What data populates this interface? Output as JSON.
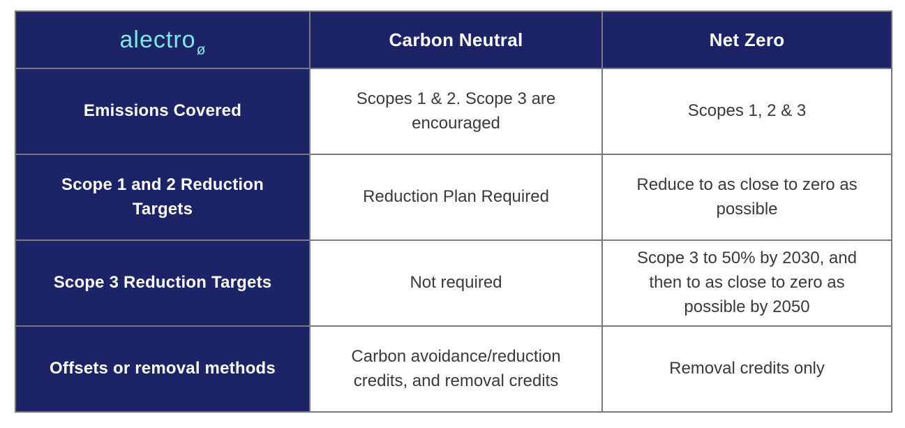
{
  "brand": {
    "name": "alectro",
    "subscript_symbol": "ø",
    "logo_color": "#7ce8e3"
  },
  "theme": {
    "navy": "#1c2366",
    "border_gray": "#7a7a7a",
    "header_text_color": "#ffffff",
    "body_text_color": "#3a3a3a",
    "cell_background": "#ffffff"
  },
  "table": {
    "column_headers": {
      "carbon_neutral": "Carbon Neutral",
      "net_zero": "Net Zero"
    },
    "rows": [
      {
        "label": "Emissions Covered",
        "carbon_neutral": "Scopes 1 & 2. Scope 3 are encouraged",
        "net_zero": "Scopes 1, 2 & 3"
      },
      {
        "label": "Scope 1 and 2 Reduction Targets",
        "carbon_neutral": "Reduction Plan Required",
        "net_zero": "Reduce to as close to zero as possible"
      },
      {
        "label": "Scope 3 Reduction Targets",
        "carbon_neutral": "Not required",
        "net_zero": "Scope 3 to 50% by 2030, and then to as close to zero as possible by 2050"
      },
      {
        "label": "Offsets or removal methods",
        "carbon_neutral": "Carbon avoidance/reduction credits, and removal credits",
        "net_zero": "Removal credits only"
      }
    ]
  }
}
